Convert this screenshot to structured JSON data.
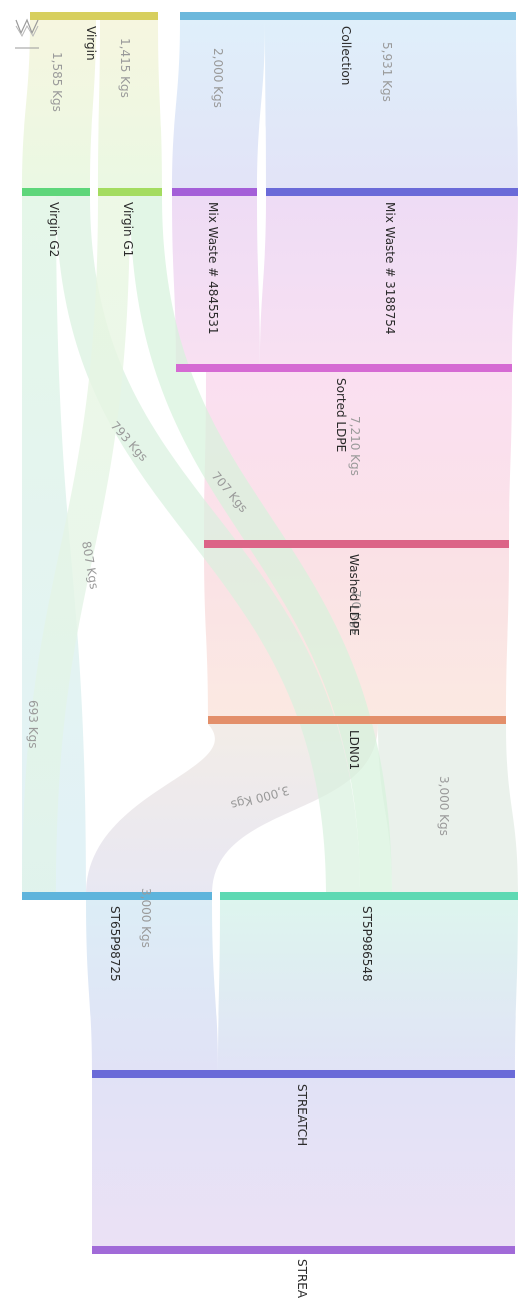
{
  "diagram": {
    "nodes": [
      {
        "id": "virgin",
        "label": "Virgin",
        "color": "#d7cf5e"
      },
      {
        "id": "collection",
        "label": "Collection",
        "color": "#6cb8dc"
      },
      {
        "id": "virgin_g2",
        "label": "Virgin G2",
        "color": "#5ed67a"
      },
      {
        "id": "virgin_g1",
        "label": "Virgin G1",
        "color": "#a4dc60"
      },
      {
        "id": "mix_4845531",
        "label": "Mix Waste # 4845531",
        "color": "#a45fd8"
      },
      {
        "id": "mix_3188754",
        "label": "Mix Waste # 3188754",
        "color": "#6a6ad8"
      },
      {
        "id": "sorted_ldpe",
        "label": "Sorted LDPE",
        "color": "#d56ad3"
      },
      {
        "id": "washed_ldpe",
        "label": "Washed LDPE",
        "color": "#dc6487"
      },
      {
        "id": "ldn01",
        "label": "LDN01",
        "color": "#e38f6a"
      },
      {
        "id": "st65p98725",
        "label": "ST65P98725",
        "color": "#5eb4dc"
      },
      {
        "id": "st5p986548",
        "label": "ST5P986548",
        "color": "#5ed9b3"
      },
      {
        "id": "streatch",
        "label": "STREATCH",
        "color": "#6a6ad8"
      },
      {
        "id": "strea",
        "label": "STREA",
        "color": "#a16ad8"
      }
    ],
    "flow_labels": [
      {
        "id": "virgin_to_g1",
        "text": "1,415 Kgs"
      },
      {
        "id": "virgin_to_g2",
        "text": "1,585 Kgs"
      },
      {
        "id": "collection_to_4845531",
        "text": "2,000 Kgs"
      },
      {
        "id": "collection_to_3188754",
        "text": "5,931 Kgs"
      },
      {
        "id": "mix_to_sorted",
        "text": ""
      },
      {
        "id": "sorted_to_washed",
        "text": "7,210 Kgs"
      },
      {
        "id": "washed_to_ldn01",
        "text": "7,0 Kgs"
      },
      {
        "id": "g1_to_st5p",
        "text": "793 Kgs"
      },
      {
        "id": "g1_to_st65",
        "text": "807 Kgs"
      },
      {
        "id": "g2_to_st5p",
        "text": "707 Kgs"
      },
      {
        "id": "g2_to_st65",
        "text": "693 Kgs"
      },
      {
        "id": "ldn01_to_st65",
        "text": "3,000 Kgs"
      },
      {
        "id": "ldn01_to_st5p",
        "text": "3,000 Kgs"
      },
      {
        "id": "st65_to_streatch",
        "text": "3,000 Kgs"
      }
    ],
    "icon": "zigzag-menu-icon"
  }
}
